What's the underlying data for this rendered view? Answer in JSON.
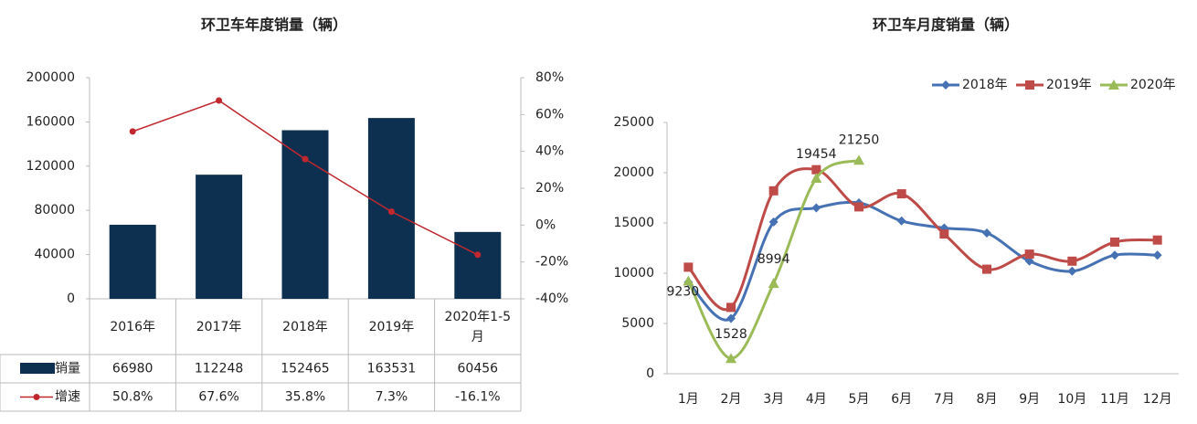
{
  "chart_data": [
    {
      "type": "bar_line_table",
      "title": "环卫车年度销量（辆）",
      "categories": [
        "2016年",
        "2017年",
        "2018年",
        "2019年",
        "2020年1-5月"
      ],
      "series": [
        {
          "name": "销量",
          "color": "#0d3050",
          "values": [
            66980,
            112248,
            152465,
            163531,
            60456
          ]
        },
        {
          "name": "增速",
          "color": "#c0282e",
          "axis": "y2",
          "values": [
            50.8,
            67.6,
            35.8,
            7.3,
            -16.1
          ],
          "value_labels": [
            "50.8%",
            "67.6%",
            "35.8%",
            "7.3%",
            "-16.1%"
          ]
        }
      ],
      "ylim": [
        0,
        200000
      ],
      "yticks": [
        0,
        40000,
        80000,
        120000,
        160000,
        200000
      ],
      "y2lim": [
        -40,
        80
      ],
      "y2ticks": [
        {
          "value": -40,
          "label": "-40%"
        },
        {
          "value": -20,
          "label": "-20%"
        },
        {
          "value": 0,
          "label": "0%"
        },
        {
          "value": 20,
          "label": "20%"
        },
        {
          "value": 40,
          "label": "40%"
        },
        {
          "value": 60,
          "label": "60%"
        },
        {
          "value": 80,
          "label": "80%"
        }
      ]
    },
    {
      "type": "line",
      "title": "环卫车月度销量（辆）",
      "categories": [
        "1月",
        "2月",
        "3月",
        "4月",
        "5月",
        "6月",
        "7月",
        "8月",
        "9月",
        "10月",
        "11月",
        "12月"
      ],
      "series": [
        {
          "name": "2018年",
          "color": "#4672b4",
          "marker": "diamond",
          "values": [
            9100,
            5500,
            15100,
            16500,
            17000,
            15200,
            14500,
            14000,
            11200,
            10200,
            11800,
            11800
          ]
        },
        {
          "name": "2019年",
          "color": "#be4b48",
          "marker": "square",
          "values": [
            10600,
            6600,
            18200,
            20300,
            16600,
            17900,
            13900,
            10400,
            11900,
            11200,
            13100,
            13300
          ]
        },
        {
          "name": "2020年",
          "color": "#9bbb59",
          "marker": "triangle",
          "data_labels": true,
          "values": [
            9230,
            1528,
            8994,
            19454,
            21250,
            null,
            null,
            null,
            null,
            null,
            null,
            null
          ]
        }
      ],
      "ylim": [
        0,
        25000
      ],
      "yticks": [
        0,
        5000,
        10000,
        15000,
        20000,
        25000
      ],
      "legend": "top-right"
    }
  ]
}
